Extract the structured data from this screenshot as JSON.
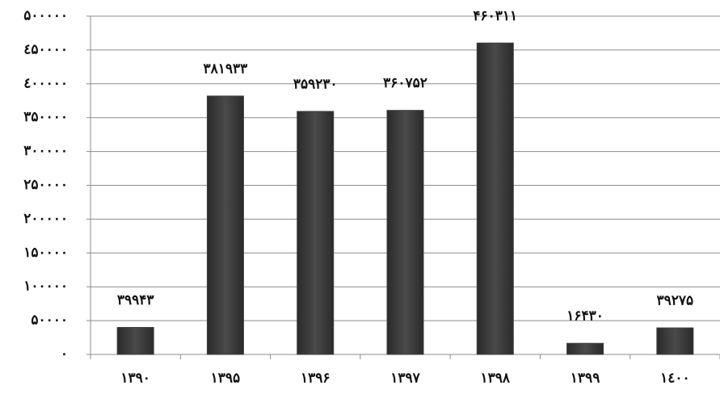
{
  "chart_data": {
    "type": "bar",
    "categories": [
      "۱۳۹۰",
      "۱۳۹۵",
      "۱۳۹۶",
      "۱۳۹۷",
      "۱۳۹۸",
      "۱۳۹۹",
      "۱٤۰۰"
    ],
    "values": [
      39943,
      381933,
      359230,
      360752,
      460311,
      16430,
      39275
    ],
    "value_labels": [
      "۳۹۹۴۳",
      "۳۸۱۹۳۳",
      "۳۵۹۲۳۰",
      "۳۶۰۷۵۲",
      "۴۶۰۳۱۱",
      "۱۶۴۳۰",
      "۳۹۲۷۵"
    ],
    "color": "#404040",
    "ylim": [
      0,
      500000
    ],
    "yticks": [
      {
        "value": 0,
        "label": "۰"
      },
      {
        "value": 50000,
        "label": "۵۰۰۰۰"
      },
      {
        "value": 100000,
        "label": "۱۰۰۰۰۰"
      },
      {
        "value": 150000,
        "label": "۱۵۰۰۰۰"
      },
      {
        "value": 200000,
        "label": "۲۰۰۰۰۰"
      },
      {
        "value": 250000,
        "label": "۲۵۰۰۰۰"
      },
      {
        "value": 300000,
        "label": "۳۰۰۰۰۰"
      },
      {
        "value": 350000,
        "label": "۳۵۰۰۰۰"
      },
      {
        "value": 400000,
        "label": "٤۰۰۰۰۰"
      },
      {
        "value": 450000,
        "label": "٤۵۰۰۰۰"
      },
      {
        "value": 500000,
        "label": "۵۰۰۰۰۰"
      }
    ],
    "grid": true
  }
}
